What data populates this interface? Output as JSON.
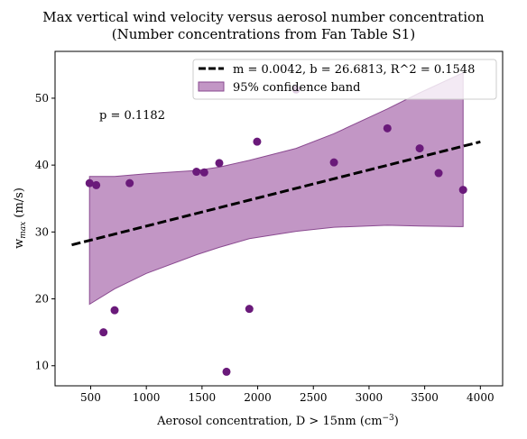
{
  "chart_data": {
    "type": "scatter",
    "title": "Max vertical wind velocity versus aerosol number concentration",
    "subtitle": "(Number concentrations from Fan Table S1)",
    "xlabel": "Aerosol concentration, D > 15nm (cm",
    "xlabel_sup": "−3",
    "xlabel_close": ")",
    "ylabel_main": "w",
    "ylabel_sub": "max",
    "ylabel_unit": " (m/s)",
    "xlim": [
      180,
      4200
    ],
    "ylim": [
      7,
      57
    ],
    "xticks": [
      500,
      1000,
      1500,
      2000,
      2500,
      3000,
      3500,
      4000
    ],
    "yticks": [
      10,
      20,
      30,
      40,
      50
    ],
    "grid": false,
    "legend_position": "top-right",
    "annotation": "p = 0.1182",
    "points": {
      "color": "#6a1a7a",
      "x": [
        490,
        550,
        615,
        715,
        850,
        1450,
        1520,
        1655,
        1720,
        1925,
        1995,
        2345,
        2685,
        3165,
        3455,
        3625,
        3845
      ],
      "y": [
        37.3,
        37.0,
        15.0,
        18.3,
        37.3,
        39.0,
        38.9,
        40.3,
        9.1,
        18.5,
        43.5,
        51.3,
        40.4,
        45.5,
        42.5,
        38.8,
        36.3
      ]
    },
    "fit": {
      "name": "m = 0.0042, b = 26.6813, R^2 = 0.1548",
      "slope": 0.0042,
      "intercept": 26.6813,
      "x_range": [
        330,
        4000
      ],
      "color": "#000000"
    },
    "band": {
      "name": "95% confidence band",
      "color": "#a86aad",
      "x": [
        490,
        715,
        1000,
        1450,
        1655,
        1925,
        2345,
        2685,
        3165,
        3455,
        3845
      ],
      "lower": [
        19.2,
        21.5,
        23.8,
        26.6,
        27.7,
        29.0,
        30.1,
        30.7,
        31.0,
        30.9,
        30.8
      ],
      "upper": [
        38.3,
        38.3,
        38.7,
        39.2,
        39.7,
        40.7,
        42.5,
        44.7,
        48.4,
        50.8,
        53.8
      ]
    }
  }
}
